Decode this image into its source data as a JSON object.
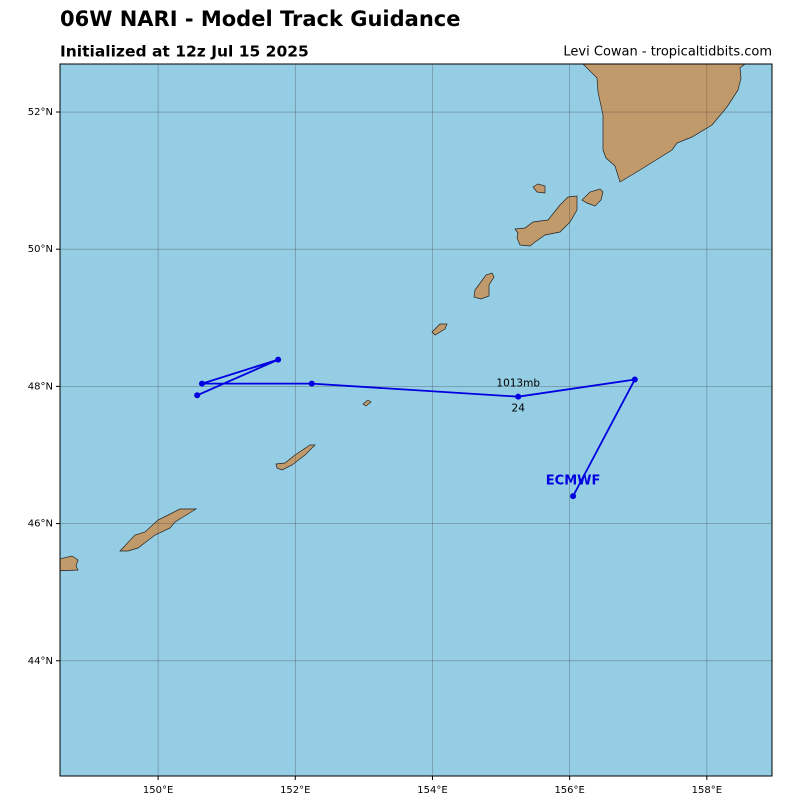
{
  "chart_data": {
    "type": "track",
    "title": "06W NARI - Model Track Guidance",
    "subtitle": "Initialized at 12z Jul 15 2025",
    "credit": "Levi Cowan - tropicaltidbits.com",
    "xlim": [
      148.57,
      158.95
    ],
    "ylim": [
      42.32,
      52.7
    ],
    "xticks": [
      {
        "value": 150,
        "label": "150°E"
      },
      {
        "value": 152,
        "label": "152°E"
      },
      {
        "value": 154,
        "label": "154°E"
      },
      {
        "value": 156,
        "label": "156°E"
      },
      {
        "value": 158,
        "label": "158°E"
      }
    ],
    "yticks": [
      {
        "value": 44,
        "label": "44°N"
      },
      {
        "value": 46,
        "label": "46°N"
      },
      {
        "value": 48,
        "label": "48°N"
      },
      {
        "value": 50,
        "label": "50°N"
      },
      {
        "value": 52,
        "label": "52°N"
      }
    ],
    "grid": true,
    "series": [
      {
        "name": "ECMWF",
        "color": "#0000e0",
        "x": [
          156.05,
          156.95,
          155.25,
          152.24,
          150.64,
          151.75,
          150.57
        ],
        "values": [
          46.4,
          48.1,
          47.85,
          48.04,
          48.04,
          48.39,
          47.87
        ],
        "pressure_labels": [
          null,
          null,
          "1013mb",
          null,
          null,
          null,
          null
        ],
        "hour_labels": [
          null,
          null,
          "24",
          null,
          null,
          null,
          null
        ]
      }
    ]
  }
}
